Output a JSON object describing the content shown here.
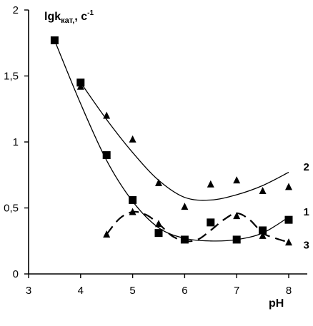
{
  "chart_data": {
    "type": "scatter",
    "title": "",
    "xlabel": "pH",
    "ylabel_main": "lgk",
    "ylabel_sub": "кат,",
    "ylabel_suffix": ", с",
    "ylabel_sup": "-1",
    "xlim": [
      3,
      8.5
    ],
    "ylim": [
      0,
      2
    ],
    "x_ticks": [
      3,
      4,
      5,
      6,
      7,
      8
    ],
    "x_tick_labels": [
      "3",
      "4",
      "5",
      "6",
      "7",
      "8"
    ],
    "y_ticks": [
      0,
      0.5,
      1,
      1.5,
      2
    ],
    "y_tick_labels": [
      "0",
      "0,5",
      "1",
      "1,5",
      "2"
    ],
    "grid": false,
    "legend": "none",
    "series": [
      {
        "name": "1",
        "marker": "square",
        "line_style": "solid",
        "label_at": [
          8.35,
          0.47
        ],
        "points": [
          [
            3.5,
            1.77
          ],
          [
            4.0,
            1.45
          ],
          [
            4.5,
            0.9
          ],
          [
            5.0,
            0.56
          ],
          [
            5.5,
            0.31
          ],
          [
            6.0,
            0.26
          ],
          [
            6.5,
            0.39
          ],
          [
            7.0,
            0.26
          ],
          [
            7.5,
            0.33
          ],
          [
            8.0,
            0.41
          ]
        ],
        "curve": [
          [
            3.5,
            1.77
          ],
          [
            4.0,
            1.29
          ],
          [
            4.5,
            0.86
          ],
          [
            5.0,
            0.55
          ],
          [
            5.5,
            0.35
          ],
          [
            6.0,
            0.27
          ],
          [
            6.5,
            0.25
          ],
          [
            7.0,
            0.26
          ],
          [
            7.5,
            0.31
          ],
          [
            8.0,
            0.43
          ]
        ]
      },
      {
        "name": "2",
        "marker": "triangle",
        "line_style": "solid",
        "label_at": [
          8.35,
          0.81
        ],
        "points": [
          [
            4.0,
            1.42
          ],
          [
            4.5,
            1.2
          ],
          [
            5.0,
            1.02
          ],
          [
            5.5,
            0.69
          ],
          [
            6.0,
            0.51
          ],
          [
            6.5,
            0.68
          ],
          [
            7.0,
            0.71
          ],
          [
            7.5,
            0.63
          ],
          [
            8.0,
            0.66
          ]
        ],
        "curve": [
          [
            4.0,
            1.45
          ],
          [
            4.5,
            1.17
          ],
          [
            5.0,
            0.92
          ],
          [
            5.5,
            0.71
          ],
          [
            6.0,
            0.58
          ],
          [
            6.5,
            0.56
          ],
          [
            7.0,
            0.6
          ],
          [
            7.5,
            0.67
          ],
          [
            8.0,
            0.77
          ]
        ]
      },
      {
        "name": "3",
        "marker": "triangle",
        "line_style": "dashed",
        "label_at": [
          8.35,
          0.22
        ],
        "points": [
          [
            4.5,
            0.3
          ],
          [
            5.0,
            0.47
          ],
          [
            5.5,
            0.38
          ],
          [
            6.0,
            0.26
          ],
          [
            7.0,
            0.44
          ],
          [
            7.5,
            0.29
          ],
          [
            8.0,
            0.24
          ]
        ],
        "curve": [
          [
            4.5,
            0.3
          ],
          [
            4.75,
            0.42
          ],
          [
            5.0,
            0.47
          ],
          [
            5.25,
            0.45
          ],
          [
            5.5,
            0.38
          ],
          [
            5.75,
            0.29
          ],
          [
            6.0,
            0.25
          ],
          [
            6.25,
            0.26
          ],
          [
            6.5,
            0.33
          ],
          [
            6.75,
            0.41
          ],
          [
            7.0,
            0.46
          ],
          [
            7.25,
            0.41
          ],
          [
            7.5,
            0.31
          ],
          [
            7.75,
            0.27
          ],
          [
            8.0,
            0.24
          ]
        ]
      }
    ]
  }
}
